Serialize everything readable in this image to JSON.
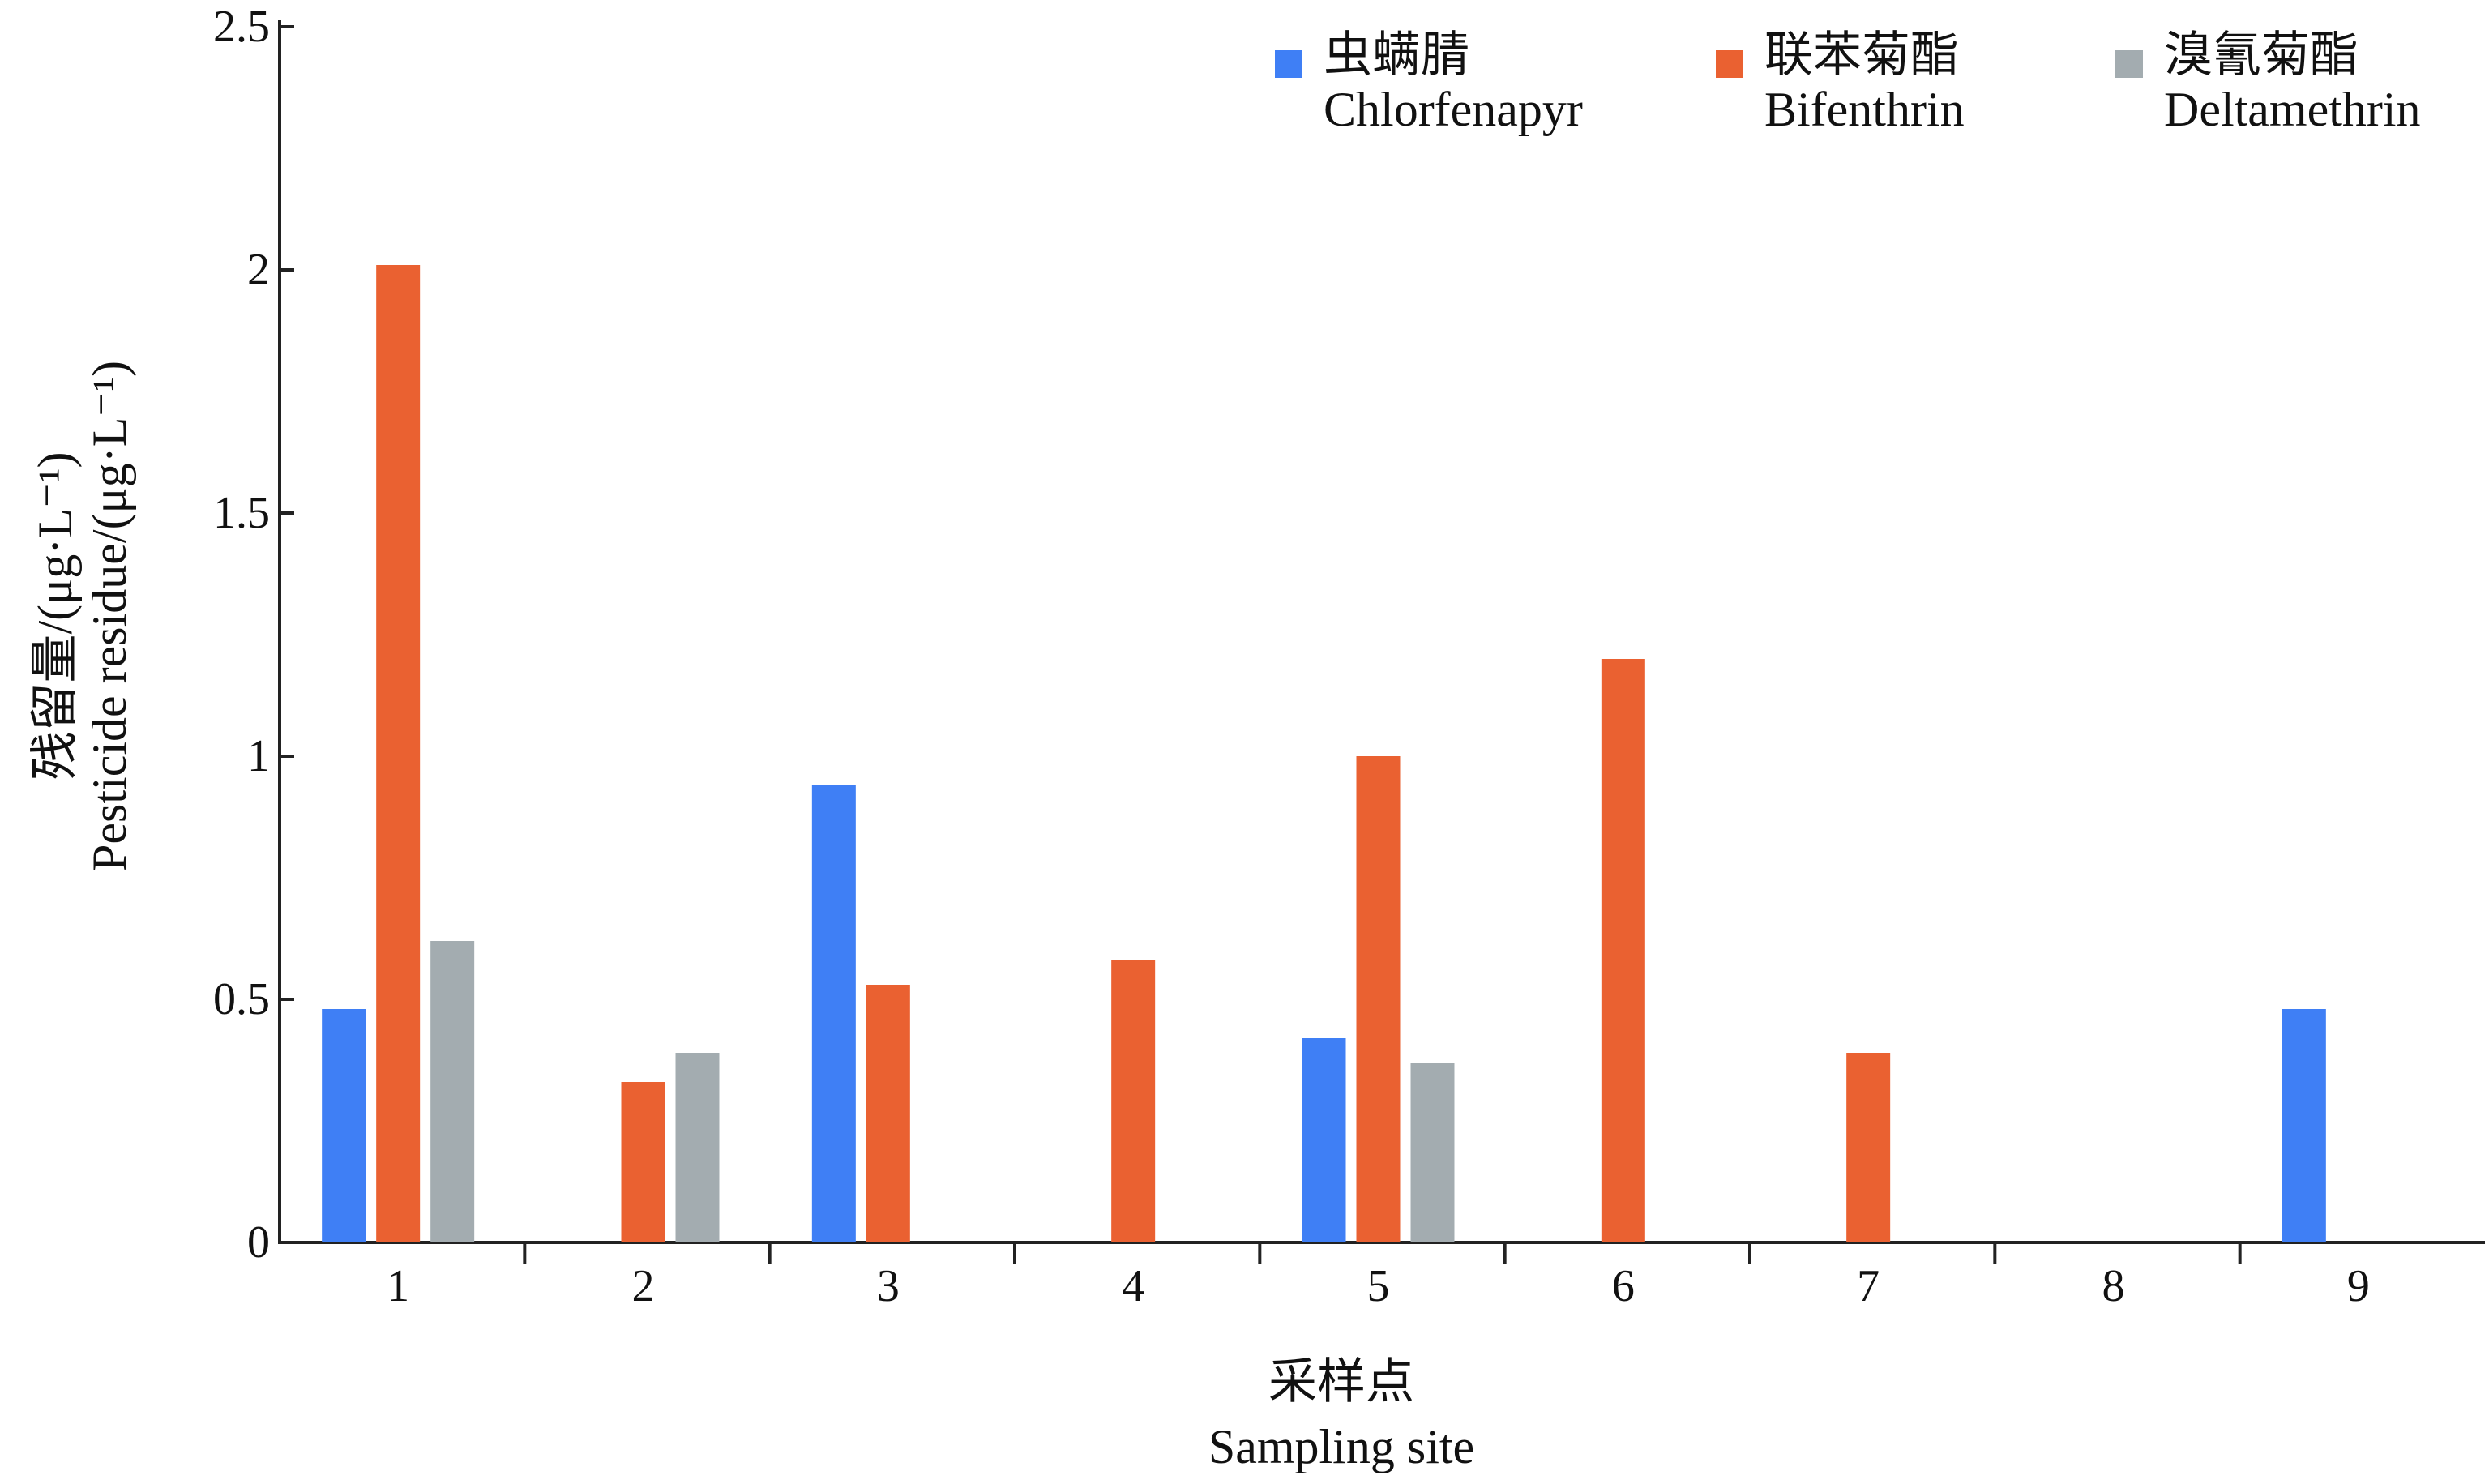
{
  "chart_data": {
    "type": "bar",
    "title": "",
    "xlabel_cn": "采样点",
    "xlabel_en": "Sampling site",
    "ylabel_cn": "残留量/(μg·L⁻¹)",
    "ylabel_en": "Pesticide residue/(μg·L⁻¹)",
    "categories": [
      "1",
      "2",
      "3",
      "4",
      "5",
      "6",
      "7",
      "8",
      "9"
    ],
    "ylim": [
      0,
      2.5
    ],
    "yticks": [
      "0",
      "0.5",
      "1",
      "1.5",
      "2",
      "2.5"
    ],
    "legend_position": "top-right",
    "grid": false,
    "series": [
      {
        "name_cn": "虫螨腈",
        "name": "Chlorfenapyr",
        "color": "#3f7ff5",
        "values": [
          0.48,
          0,
          0.94,
          0,
          0.42,
          0,
          0,
          0,
          0.48
        ]
      },
      {
        "name_cn": "联苯菊酯",
        "name": "Bifenthrin",
        "color": "#ea6131",
        "values": [
          2.01,
          0.33,
          0.53,
          0.58,
          1.0,
          1.2,
          0.39,
          0,
          0
        ]
      },
      {
        "name_cn": "溴氰菊酯",
        "name": "Deltamethrin",
        "color": "#a3acb0",
        "values": [
          0.62,
          0.39,
          0,
          0,
          0.37,
          0,
          0,
          0,
          0
        ]
      }
    ]
  }
}
